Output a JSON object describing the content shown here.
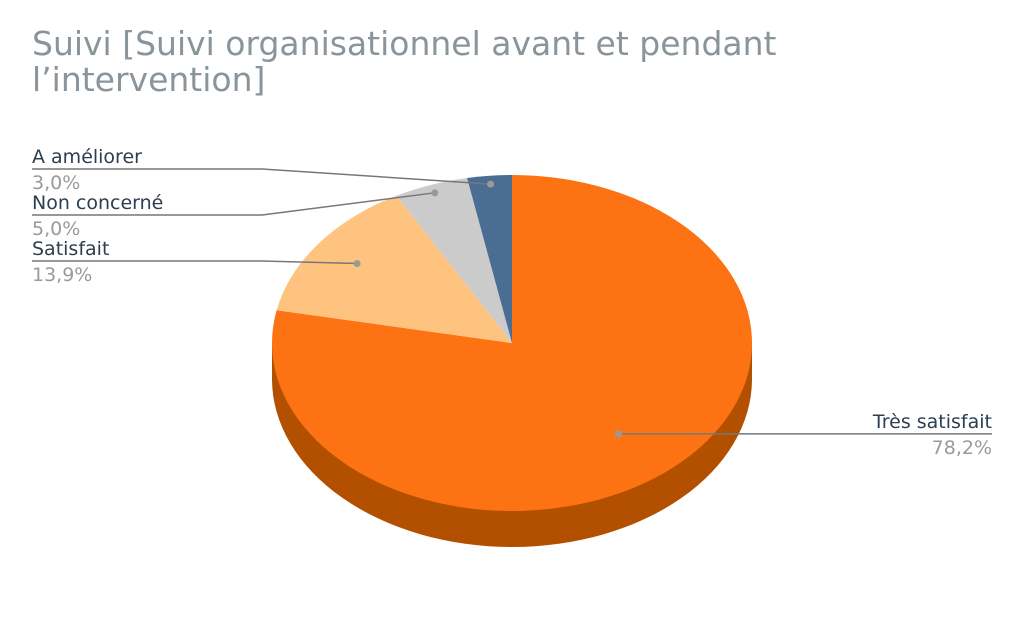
{
  "chart_data": {
    "type": "pie",
    "style": "3d",
    "title": "Suivi [Suivi organisationnel avant et pendant l’intervention]",
    "slices": [
      {
        "label": "Très satisfait",
        "value": 78.2,
        "value_label": "78,2%",
        "color": "#fd7313",
        "side_color": "#b35000"
      },
      {
        "label": "Satisfait",
        "value": 13.9,
        "value_label": "13,9%",
        "color": "#ffc380"
      },
      {
        "label": "Non concerné",
        "value": 5.0,
        "value_label": "5,0%",
        "color": "#cbcbcb"
      },
      {
        "label": "A améliorer",
        "value": 3.0,
        "value_label": "3,0%",
        "color": "#4a6e93"
      }
    ],
    "legend": "none",
    "data_labels": "outside-with-leaders"
  }
}
